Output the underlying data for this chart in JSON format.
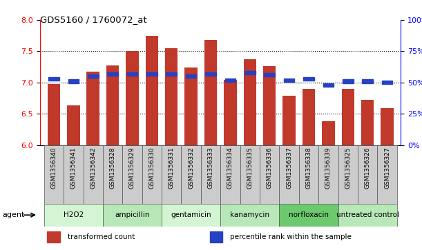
{
  "title": "GDS5160 / 1760072_at",
  "samples": [
    "GSM1356340",
    "GSM1356341",
    "GSM1356342",
    "GSM1356328",
    "GSM1356329",
    "GSM1356330",
    "GSM1356331",
    "GSM1356332",
    "GSM1356333",
    "GSM1356334",
    "GSM1356335",
    "GSM1356336",
    "GSM1356337",
    "GSM1356338",
    "GSM1356339",
    "GSM1356325",
    "GSM1356326",
    "GSM1356327"
  ],
  "bar_values": [
    6.98,
    6.63,
    7.17,
    7.27,
    7.5,
    7.75,
    7.55,
    7.24,
    7.68,
    7.04,
    7.37,
    7.26,
    6.79,
    6.9,
    6.38,
    6.9,
    6.72,
    6.59
  ],
  "percentile_values": [
    53,
    51,
    55,
    57,
    57,
    57,
    57,
    55,
    57,
    52,
    58,
    56,
    52,
    53,
    48,
    51,
    51,
    50
  ],
  "bar_color": "#c0392b",
  "percentile_color": "#2541c4",
  "ylim_left": [
    6.0,
    8.0
  ],
  "ylim_right": [
    0,
    100
  ],
  "yticks_left": [
    6.0,
    6.5,
    7.0,
    7.5,
    8.0
  ],
  "yticks_right": [
    0,
    25,
    50,
    75,
    100
  ],
  "groups": [
    {
      "label": "H2O2",
      "start": 0,
      "end": 3,
      "color": "#d4f5d4"
    },
    {
      "label": "ampicillin",
      "start": 3,
      "end": 6,
      "color": "#b8e8b8"
    },
    {
      "label": "gentamicin",
      "start": 6,
      "end": 9,
      "color": "#d4f5d4"
    },
    {
      "label": "kanamycin",
      "start": 9,
      "end": 12,
      "color": "#b8e8b8"
    },
    {
      "label": "norfloxacin",
      "start": 12,
      "end": 15,
      "color": "#6dc96d"
    },
    {
      "label": "untreated control",
      "start": 15,
      "end": 18,
      "color": "#b8e8b8"
    }
  ],
  "agent_label": "agent",
  "legend_items": [
    {
      "label": "transformed count",
      "color": "#c0392b"
    },
    {
      "label": "percentile rank within the sample",
      "color": "#2541c4"
    }
  ],
  "bar_bottom": 6.0,
  "grid_dotted_values": [
    6.5,
    7.0,
    7.5
  ],
  "bar_width": 0.65
}
